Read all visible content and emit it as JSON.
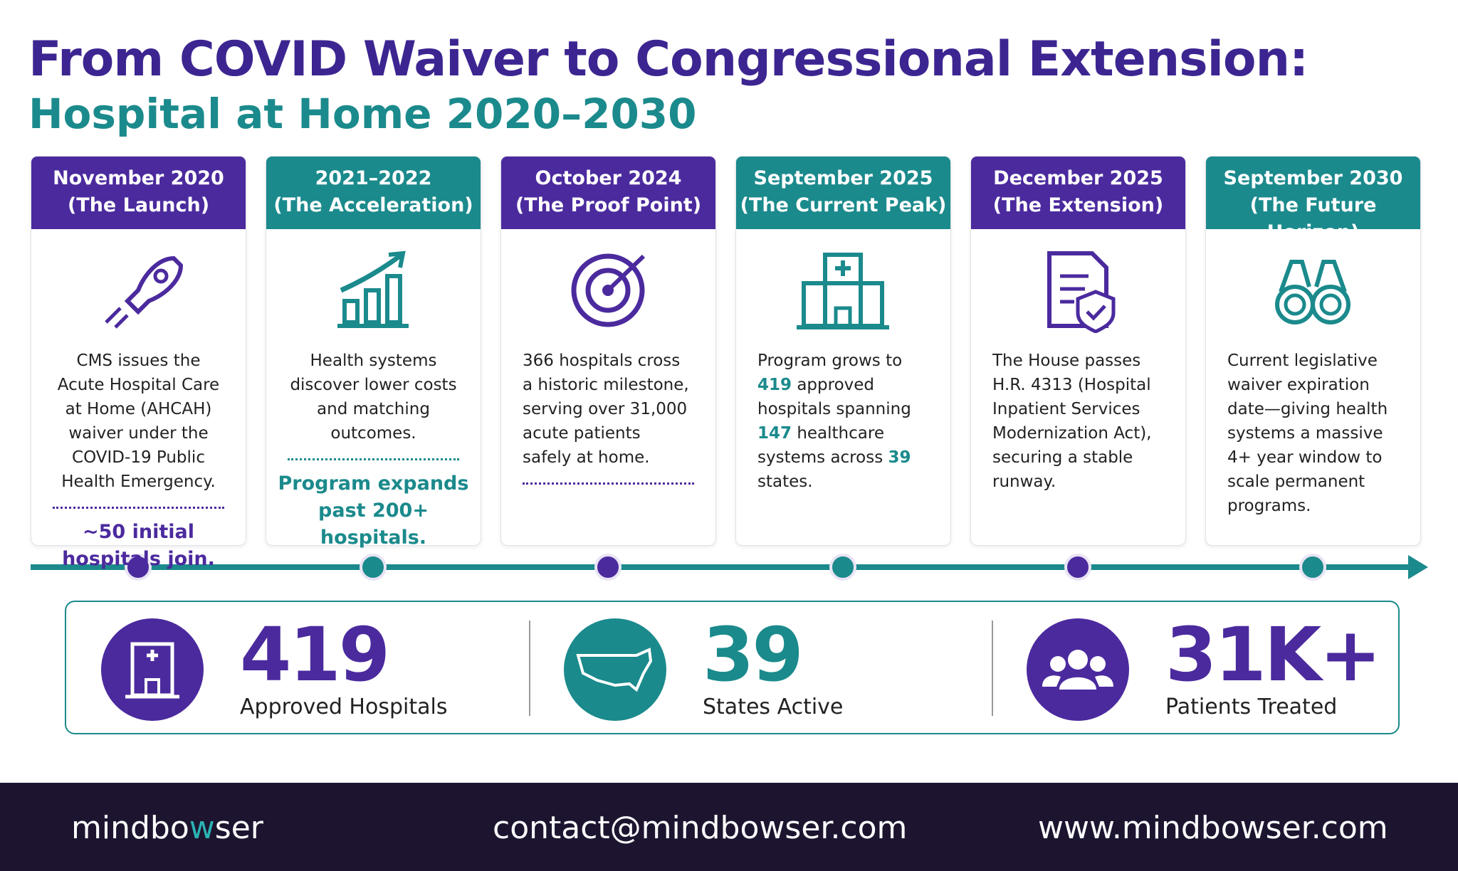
{
  "header": {
    "title": "From COVID Waiver to Congressional Extension:",
    "subtitle": "Hospital at Home 2020–2030"
  },
  "timeline": [
    {
      "date": "November 2020",
      "phase": "(The Launch)",
      "color": "#4b2a9e",
      "divider": true,
      "body": [
        {
          "text": "CMS issues the Acute Hospital Care at Home (AHCAH) waiver under the COVID-19 Public Health Emergency."
        }
      ],
      "highlight": "~50 initial hospitals join."
    },
    {
      "date": "2021–2022",
      "phase": "(The Acceleration)",
      "color": "#1b8a8c",
      "divider": true,
      "body": [
        {
          "text": "Health systems discover lower costs and matching outcomes."
        }
      ],
      "highlight": "Program expands past 200+ hospitals."
    },
    {
      "date": "October 2024",
      "phase": "(The Proof Point)",
      "color": "#4b2a9e",
      "divider": true,
      "body": [
        {
          "text": "366 hospitals cross a historic milestone, serving over 31,000 acute patients safely at home."
        }
      ]
    },
    {
      "date": "September 2025",
      "phase": "(The Current Peak)",
      "color": "#1b8a8c",
      "divider": false,
      "body": [
        {
          "text": "Program grows to "
        },
        {
          "text": "419",
          "emphasis": true
        },
        {
          "text": " approved hospitals spanning "
        },
        {
          "text": "147",
          "emphasis": true
        },
        {
          "text": " healthcare systems across "
        },
        {
          "text": "39",
          "emphasis": true
        },
        {
          "text": " states."
        }
      ]
    },
    {
      "date": "December 2025",
      "phase": "(The Extension)",
      "color": "#4b2a9e",
      "divider": false,
      "body": [
        {
          "text": "The House passes H.R. 4313 (Hospital Inpatient Services Modernization Act), securing a stable runway."
        }
      ]
    },
    {
      "date": "September 2030",
      "phase": "(The Future Horizon)",
      "color": "#1b8a8c",
      "divider": false,
      "body": [
        {
          "text": "Current legislative waiver expiration date—giving health systems a massive 4+ year window to scale permanent programs."
        }
      ]
    }
  ],
  "stats": [
    {
      "value": "419",
      "label": "Approved Hospitals",
      "color": "#4b2a9e"
    },
    {
      "value": "39",
      "label": "States Active",
      "color": "#1b8a8c"
    },
    {
      "value": "31K+",
      "label": "Patients Treated",
      "color": "#4b2a9e"
    }
  ],
  "footer": {
    "brand": [
      {
        "text": "mindbo"
      },
      {
        "text": "w",
        "emphasis": true
      },
      {
        "text": "ser"
      }
    ],
    "email": "contact@mindbowser.com",
    "website": "www.mindbowser.com"
  }
}
